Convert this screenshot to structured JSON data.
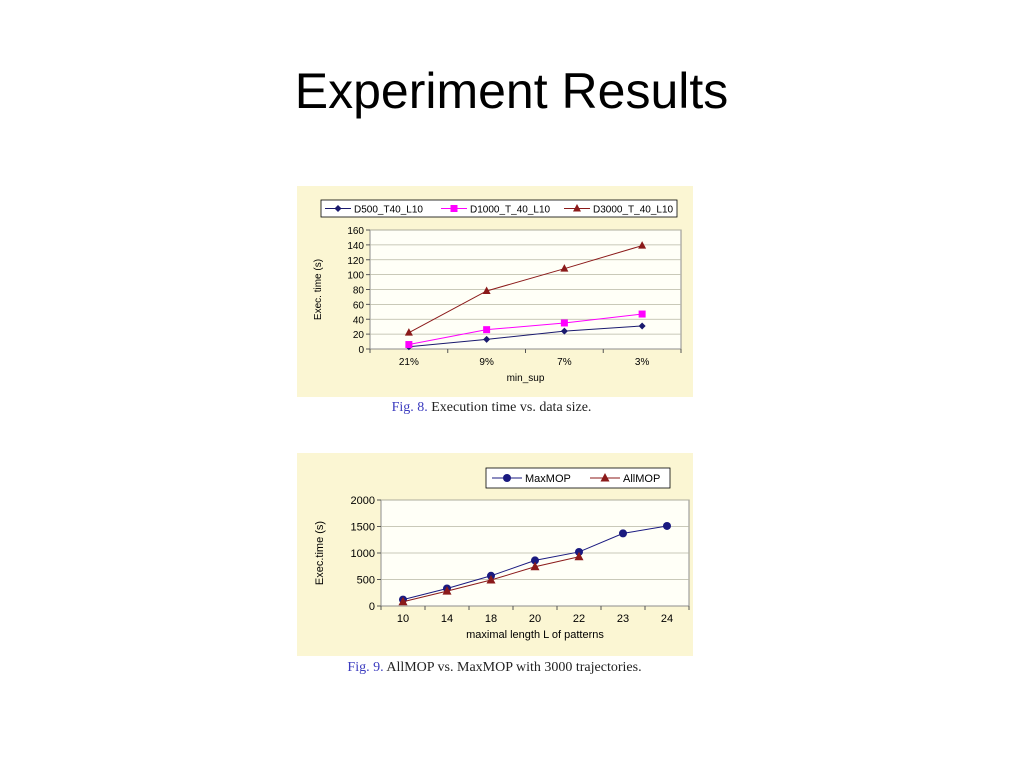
{
  "slide": {
    "title": "Experiment Results"
  },
  "colors": {
    "panel_bg": "#fbf6d3",
    "plot_bg": "#fffff7",
    "grid": "#b7b7a4"
  },
  "figures": [
    {
      "number": "Fig. 8.",
      "caption_text": "Execution time vs. data size."
    },
    {
      "number": "Fig. 9.",
      "caption_text": "AllMOP vs. MaxMOP with 3000 trajectories."
    }
  ],
  "chart_data": [
    {
      "type": "line",
      "xlabel": "min_sup",
      "ylabel": "Exec. time (s)",
      "categories": [
        "21%",
        "9%",
        "7%",
        "3%"
      ],
      "ylim": [
        0,
        160
      ],
      "yticks": [
        0,
        20,
        40,
        60,
        80,
        100,
        120,
        140,
        160
      ],
      "grid": true,
      "legend": "top",
      "series": [
        {
          "name": "D500_T40_L10",
          "color": "#1a1a6e",
          "marker": "diamond",
          "values": [
            3,
            13,
            24,
            31
          ]
        },
        {
          "name": "D1000_T_40_L10",
          "color": "#ff00ff",
          "marker": "square",
          "values": [
            6,
            26,
            35,
            47
          ]
        },
        {
          "name": "D3000_T_40_L10",
          "color": "#8b1a1a",
          "marker": "triangle",
          "values": [
            22,
            78,
            108,
            139
          ]
        }
      ]
    },
    {
      "type": "line",
      "xlabel": "maximal length L of patterns",
      "ylabel": "Exec.time (s)",
      "categories": [
        "10",
        "14",
        "18",
        "20",
        "22",
        "23",
        "24"
      ],
      "ylim": [
        0,
        2000
      ],
      "yticks": [
        0,
        500,
        1000,
        1500,
        2000
      ],
      "grid": true,
      "legend": "top-right",
      "series": [
        {
          "name": "MaxMOP",
          "color": "#1a1a80",
          "marker": "circle",
          "values": [
            120,
            330,
            570,
            860,
            1020,
            1370,
            1510
          ]
        },
        {
          "name": "AllMOP",
          "color": "#8b1a1a",
          "marker": "triangle",
          "values": [
            80,
            280,
            490,
            740,
            930,
            null,
            null
          ]
        }
      ]
    }
  ]
}
